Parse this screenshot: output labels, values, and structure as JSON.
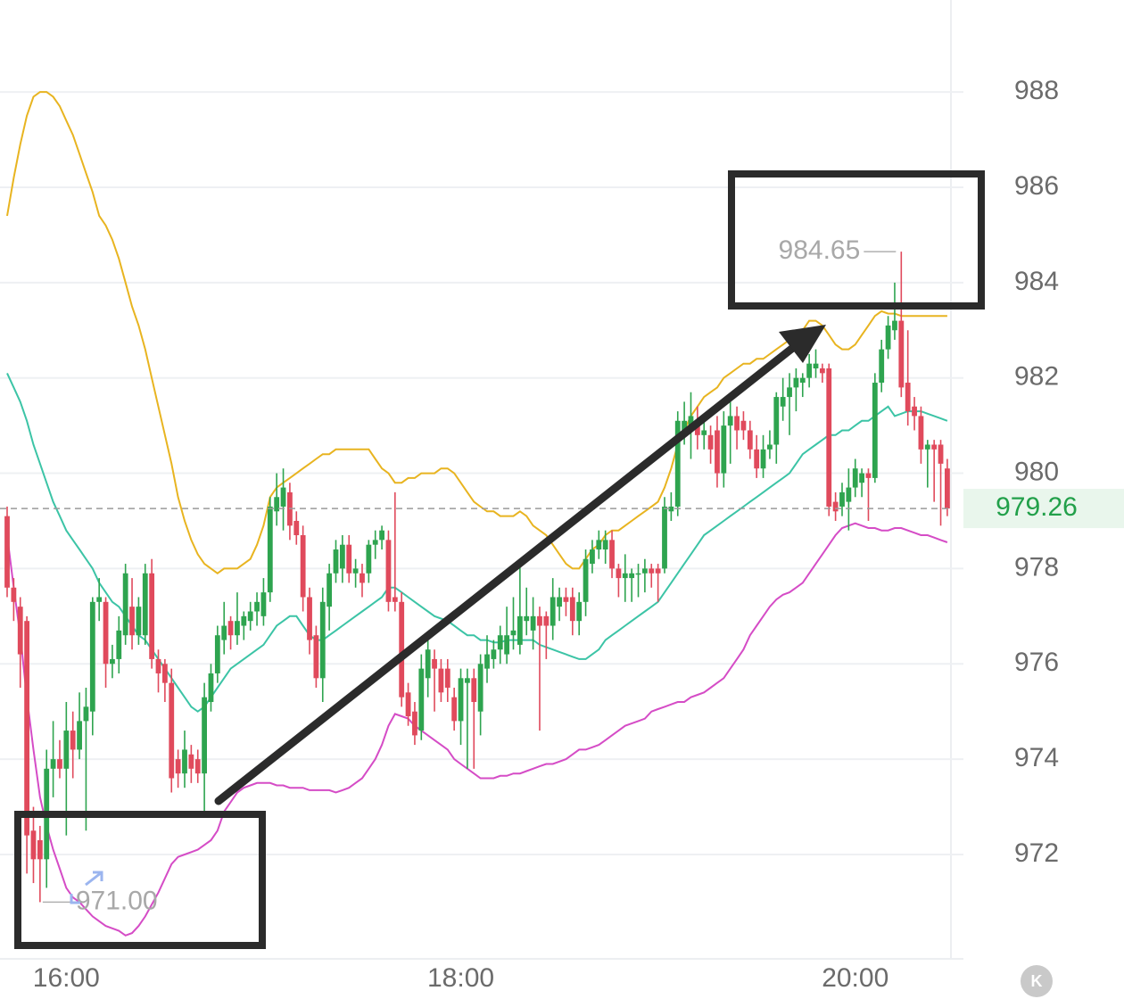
{
  "chart_data": {
    "type": "candlestick",
    "categories": [
      null,
      null,
      null,
      null,
      null,
      null,
      null,
      null,
      null,
      "16:00",
      null,
      null,
      null,
      null,
      null,
      null,
      null,
      null,
      null,
      null,
      null,
      null,
      null,
      null,
      null,
      null,
      null,
      null,
      null,
      null,
      null,
      null,
      null,
      null,
      null,
      null,
      null,
      null,
      null,
      null,
      null,
      null,
      null,
      null,
      null,
      null,
      null,
      null,
      null,
      null,
      null,
      null,
      null,
      null,
      null,
      null,
      null,
      null,
      null,
      null,
      null,
      null,
      null,
      null,
      null,
      null,
      null,
      null,
      null,
      "18:00",
      null,
      null,
      null,
      null,
      null,
      null,
      null,
      null,
      null,
      null,
      null,
      null,
      null,
      null,
      null,
      null,
      null,
      null,
      null,
      null,
      null,
      null,
      null,
      null,
      null,
      null,
      null,
      null,
      null,
      null,
      null,
      null,
      null,
      null,
      null,
      null,
      null,
      null,
      null,
      null,
      null,
      null,
      null,
      null,
      null,
      null,
      null,
      null,
      null,
      null,
      null,
      null,
      null,
      null,
      null,
      null,
      null,
      null,
      null,
      "20:00",
      null,
      null,
      null,
      null,
      null,
      null,
      null,
      null,
      null,
      null,
      null,
      null,
      null,
      null
    ],
    "open": [
      979.1,
      977.6,
      977.2,
      976.9,
      972.5,
      972.3,
      971.9,
      973.8,
      974.0,
      973.8,
      974.6,
      974.2,
      974.8,
      975.0,
      977.3,
      977.3,
      976.0,
      976.1,
      976.6,
      977.2,
      976.6,
      976.6,
      977.9,
      976.1,
      976.0,
      975.6,
      974.0,
      973.7,
      974.1,
      974.0,
      973.7,
      975.2,
      975.8,
      976.5,
      976.9,
      976.6,
      976.8,
      976.9,
      977.1,
      977.0,
      977.5,
      979.2,
      979.3,
      979.6,
      979.0,
      978.7,
      977.4,
      976.6,
      975.7,
      977.2,
      977.9,
      978.0,
      978.5,
      977.9,
      977.9,
      977.9,
      978.5,
      978.6,
      978.6,
      977.4,
      977.3,
      975.4,
      975.0,
      974.6,
      975.7,
      976.1,
      975.9,
      975.9,
      975.3,
      974.8,
      975.6,
      975.7,
      975.0,
      975.9,
      976.1,
      976.3,
      976.2,
      976.6,
      976.4,
      976.9,
      976.7,
      977.0,
      977.0,
      976.8,
      977.2,
      977.4,
      977.4,
      976.9,
      977.3,
      978.1,
      978.4,
      978.4,
      978.6,
      978.0,
      977.8,
      977.8,
      977.9,
      977.9,
      978.0,
      978.0,
      978.0,
      979.2,
      979.3,
      980.9,
      981.0,
      981.1,
      980.8,
      980.8,
      980.9,
      980.0,
      981.0,
      981.2,
      981.1,
      980.9,
      980.5,
      980.1,
      980.5,
      980.6,
      981.4,
      981.6,
      981.8,
      981.9,
      982.0,
      982.2,
      982.2,
      982.2,
      979.4,
      979.3,
      979.4,
      979.7,
      979.8,
      980.0,
      979.9,
      981.9,
      982.6,
      983.0,
      983.2,
      981.9,
      981.4,
      981.2,
      980.5,
      980.6,
      980.6,
      980.1
    ],
    "high": [
      979.3,
      977.8,
      977.4,
      977.0,
      973.0,
      972.6,
      974.2,
      974.8,
      974.4,
      975.2,
      975.0,
      975.4,
      975.5,
      977.4,
      977.8,
      977.4,
      976.4,
      977.0,
      978.1,
      977.8,
      977.4,
      978.1,
      978.2,
      976.3,
      976.1,
      975.9,
      974.2,
      974.6,
      974.3,
      974.2,
      975.6,
      976.0,
      976.8,
      977.3,
      977.0,
      977.5,
      977.1,
      977.3,
      977.5,
      977.8,
      979.5,
      980.0,
      980.1,
      979.8,
      979.2,
      978.9,
      977.6,
      976.8,
      977.6,
      978.1,
      978.6,
      978.7,
      978.7,
      978.2,
      978.1,
      978.6,
      978.8,
      978.9,
      978.8,
      979.6,
      977.5,
      975.6,
      975.2,
      976.2,
      976.6,
      976.3,
      976.1,
      976.1,
      975.5,
      975.9,
      975.9,
      975.9,
      976.2,
      976.6,
      976.5,
      976.8,
      977.2,
      977.4,
      978.2,
      977.6,
      977.4,
      977.2,
      977.1,
      977.8,
      977.6,
      977.6,
      977.6,
      977.5,
      978.4,
      978.6,
      978.8,
      978.8,
      978.8,
      978.1,
      978.3,
      978.0,
      978.1,
      978.2,
      978.1,
      978.1,
      979.5,
      979.6,
      981.3,
      981.5,
      981.7,
      981.4,
      981.1,
      981.0,
      981.2,
      981.3,
      981.5,
      981.4,
      981.3,
      981.1,
      980.8,
      980.8,
      980.9,
      981.7,
      982.0,
      982.1,
      982.2,
      982.1,
      982.5,
      982.6,
      982.3,
      982.3,
      979.6,
      979.8,
      980.1,
      980.3,
      980.1,
      980.1,
      982.1,
      982.8,
      983.3,
      984.0,
      984.65,
      983.0,
      981.6,
      981.4,
      980.7,
      980.7,
      980.7,
      980.3
    ],
    "low": [
      977.4,
      976.9,
      975.5,
      971.6,
      971.4,
      971.0,
      971.3,
      973.2,
      973.6,
      972.4,
      973.6,
      974.0,
      972.5,
      974.5,
      976.9,
      975.5,
      975.7,
      975.8,
      976.4,
      976.3,
      976.4,
      976.4,
      975.9,
      975.4,
      975.2,
      973.3,
      973.4,
      973.4,
      973.5,
      973.5,
      972.9,
      975.0,
      975.6,
      976.2,
      976.3,
      976.4,
      976.5,
      976.7,
      976.8,
      976.8,
      977.3,
      978.9,
      978.8,
      978.6,
      978.5,
      977.1,
      976.2,
      975.5,
      975.2,
      976.7,
      977.7,
      977.7,
      977.7,
      977.6,
      977.4,
      977.7,
      978.2,
      978.4,
      977.1,
      977.1,
      975.1,
      974.7,
      974.3,
      974.4,
      975.3,
      975.0,
      975.2,
      975.2,
      974.6,
      974.3,
      973.8,
      973.8,
      974.5,
      975.6,
      975.9,
      976.0,
      976.0,
      976.3,
      976.2,
      976.6,
      976.3,
      974.6,
      976.1,
      976.5,
      976.9,
      977.0,
      976.6,
      976.6,
      977.0,
      977.9,
      978.2,
      978.1,
      977.8,
      977.4,
      977.3,
      977.3,
      977.4,
      977.5,
      977.6,
      977.3,
      977.9,
      979.0,
      979.1,
      980.6,
      980.3,
      980.5,
      980.5,
      980.2,
      979.7,
      979.7,
      980.2,
      980.5,
      980.7,
      980.3,
      979.9,
      979.9,
      980.3,
      980.2,
      981.1,
      980.8,
      981.3,
      981.6,
      981.8,
      982.0,
      981.9,
      979.1,
      979.0,
      979.1,
      978.8,
      979.5,
      979.5,
      979.0,
      979.8,
      981.7,
      982.4,
      982.8,
      981.6,
      981.0,
      980.9,
      980.2,
      979.7,
      979.4,
      978.9,
      979.1
    ],
    "close": [
      977.6,
      977.3,
      976.2,
      972.4,
      971.9,
      971.9,
      973.8,
      974.0,
      973.8,
      974.6,
      974.2,
      974.8,
      975.1,
      977.3,
      977.4,
      976.0,
      976.1,
      976.7,
      977.9,
      976.6,
      977.2,
      977.9,
      976.1,
      975.8,
      975.6,
      973.6,
      973.7,
      974.2,
      973.8,
      973.7,
      975.3,
      975.8,
      976.6,
      976.8,
      976.6,
      976.9,
      977.0,
      977.1,
      977.3,
      977.5,
      979.3,
      979.5,
      979.7,
      978.9,
      978.7,
      977.4,
      976.5,
      975.7,
      977.3,
      977.9,
      978.4,
      978.5,
      977.9,
      978.0,
      977.7,
      978.5,
      978.6,
      978.8,
      977.3,
      977.3,
      975.3,
      974.9,
      974.5,
      975.9,
      976.3,
      975.9,
      975.4,
      975.5,
      974.8,
      975.7,
      975.7,
      975.2,
      976.0,
      976.2,
      976.3,
      976.6,
      976.6,
      976.7,
      977.0,
      977.0,
      977.0,
      976.8,
      976.8,
      977.4,
      977.4,
      977.3,
      976.9,
      977.3,
      978.2,
      978.4,
      978.6,
      978.6,
      978.0,
      977.8,
      977.9,
      977.9,
      977.9,
      978.0,
      977.9,
      977.9,
      979.3,
      979.3,
      981.1,
      981.1,
      981.2,
      980.8,
      980.9,
      980.5,
      980.0,
      981.0,
      981.2,
      980.9,
      980.9,
      980.5,
      980.1,
      980.5,
      980.6,
      981.6,
      981.6,
      981.8,
      982.0,
      982.0,
      982.3,
      982.3,
      982.1,
      979.3,
      979.2,
      979.6,
      979.7,
      980.1,
      980.0,
      979.9,
      981.9,
      982.6,
      983.1,
      983.2,
      981.8,
      981.3,
      981.2,
      980.5,
      980.6,
      980.5,
      980.2,
      979.26
    ],
    "up_color": "#2ea44f",
    "down_color": "#e04a5c",
    "overlays": [
      {
        "color": "#e8b420",
        "values": [
          985.4,
          986.2,
          986.9,
          987.5,
          987.9,
          988.0,
          988.0,
          987.9,
          987.7,
          987.4,
          987.1,
          986.7,
          986.3,
          985.9,
          985.4,
          985.2,
          984.9,
          984.5,
          984.0,
          983.5,
          983.1,
          982.6,
          982.0,
          981.4,
          980.8,
          980.2,
          979.5,
          979.0,
          978.6,
          978.3,
          978.1,
          978.0,
          977.9,
          978.0,
          978.0,
          978.0,
          978.1,
          978.2,
          978.5,
          978.9,
          979.5,
          979.7,
          979.8,
          979.9,
          980.0,
          980.1,
          980.2,
          980.3,
          980.4,
          980.4,
          980.5,
          980.5,
          980.5,
          980.5,
          980.5,
          980.5,
          980.3,
          980.1,
          980.0,
          979.8,
          979.8,
          979.9,
          979.9,
          980.0,
          980.0,
          980.0,
          980.1,
          980.1,
          980.0,
          979.8,
          979.6,
          979.4,
          979.3,
          979.2,
          979.2,
          979.1,
          979.1,
          979.1,
          979.2,
          979.1,
          978.9,
          978.8,
          978.7,
          978.5,
          978.3,
          978.1,
          978.0,
          978.0,
          978.2,
          978.4,
          978.5,
          978.7,
          978.8,
          978.8,
          978.9,
          979.0,
          979.1,
          979.2,
          979.3,
          979.4,
          979.7,
          980.1,
          980.6,
          980.9,
          981.2,
          981.4,
          981.6,
          981.7,
          981.8,
          982.0,
          982.1,
          982.2,
          982.3,
          982.3,
          982.4,
          982.4,
          982.5,
          982.6,
          982.7,
          982.8,
          982.9,
          983.0,
          983.2,
          983.2,
          983.1,
          982.9,
          982.7,
          982.6,
          982.6,
          982.7,
          982.9,
          983.1,
          983.3,
          983.4,
          983.35,
          983.35,
          983.3,
          983.3,
          983.3,
          983.3,
          983.3,
          983.3,
          983.3,
          983.3
        ]
      },
      {
        "color": "#3cc4a6",
        "values": [
          982.1,
          981.8,
          981.5,
          981.1,
          980.6,
          980.2,
          979.8,
          979.4,
          979.1,
          978.8,
          978.6,
          978.4,
          978.2,
          978.0,
          977.7,
          977.5,
          977.3,
          977.2,
          977.0,
          976.8,
          976.6,
          976.5,
          976.3,
          976.1,
          975.9,
          975.7,
          975.5,
          975.3,
          975.1,
          975.0,
          975.1,
          975.3,
          975.5,
          975.7,
          975.9,
          976.0,
          976.1,
          976.2,
          976.3,
          976.4,
          976.6,
          976.8,
          976.9,
          977.0,
          977.0,
          976.8,
          976.6,
          976.5,
          976.5,
          976.6,
          976.7,
          976.8,
          976.9,
          977.0,
          977.1,
          977.2,
          977.3,
          977.4,
          977.6,
          977.6,
          977.5,
          977.4,
          977.3,
          977.2,
          977.1,
          977.0,
          976.95,
          976.9,
          976.8,
          976.7,
          976.6,
          976.6,
          976.5,
          976.5,
          976.45,
          976.45,
          976.5,
          976.5,
          976.5,
          976.5,
          976.5,
          976.4,
          976.35,
          976.3,
          976.25,
          976.2,
          976.15,
          976.1,
          976.1,
          976.2,
          976.3,
          976.5,
          976.6,
          976.7,
          976.8,
          976.9,
          977.0,
          977.1,
          977.2,
          977.3,
          977.5,
          977.7,
          977.9,
          978.1,
          978.3,
          978.5,
          978.7,
          978.8,
          978.9,
          979.0,
          979.1,
          979.2,
          979.3,
          979.4,
          979.5,
          979.6,
          979.7,
          979.8,
          979.9,
          980.0,
          980.2,
          980.4,
          980.5,
          980.6,
          980.7,
          980.8,
          980.8,
          980.9,
          980.9,
          981.0,
          981.1,
          981.1,
          981.2,
          981.3,
          981.4,
          981.2,
          981.25,
          981.3,
          981.3,
          981.3,
          981.25,
          981.2,
          981.15,
          981.1
        ]
      },
      {
        "color": "#d54cc6",
        "values": [
          978.7,
          977.6,
          976.6,
          975.3,
          974.2,
          973.2,
          972.6,
          972.1,
          971.7,
          971.3,
          971.1,
          971.0,
          970.85,
          970.7,
          970.6,
          970.5,
          970.45,
          970.4,
          970.3,
          970.35,
          970.5,
          970.7,
          970.95,
          971.2,
          971.5,
          971.8,
          971.95,
          972.0,
          972.05,
          972.1,
          972.2,
          972.3,
          972.5,
          972.9,
          973.1,
          973.3,
          973.4,
          973.45,
          973.5,
          973.5,
          973.5,
          973.45,
          973.45,
          973.4,
          973.4,
          973.4,
          973.35,
          973.35,
          973.35,
          973.35,
          973.3,
          973.35,
          973.4,
          973.5,
          973.6,
          973.8,
          974.0,
          974.3,
          974.7,
          974.95,
          974.9,
          974.85,
          974.7,
          974.6,
          974.5,
          974.4,
          974.3,
          974.2,
          974.0,
          973.9,
          973.8,
          973.7,
          973.6,
          973.6,
          973.6,
          973.65,
          973.65,
          973.7,
          973.7,
          973.75,
          973.8,
          973.85,
          973.9,
          973.9,
          973.95,
          974.0,
          974.1,
          974.2,
          974.2,
          974.25,
          974.3,
          974.4,
          974.5,
          974.6,
          974.7,
          974.75,
          974.8,
          974.85,
          975.0,
          975.05,
          975.1,
          975.15,
          975.2,
          975.2,
          975.3,
          975.35,
          975.4,
          975.5,
          975.6,
          975.7,
          975.9,
          976.1,
          976.3,
          976.6,
          976.8,
          977.0,
          977.2,
          977.35,
          977.45,
          977.5,
          977.6,
          977.7,
          977.9,
          978.1,
          978.3,
          978.5,
          978.7,
          978.85,
          978.9,
          978.95,
          978.9,
          978.85,
          978.85,
          978.8,
          978.8,
          978.85,
          978.85,
          978.8,
          978.75,
          978.7,
          978.7,
          978.65,
          978.6,
          978.55
        ]
      }
    ],
    "ylim": [
      969.81,
      989.93
    ],
    "yticks": [
      972,
      974,
      976,
      978,
      980,
      982,
      984,
      986,
      988
    ],
    "grid": true,
    "last_price": 979.26,
    "extreme_labels": [
      {
        "value": 984.65,
        "label": "984.65"
      },
      {
        "value": 971,
        "label": "971.00"
      }
    ]
  },
  "toolbar_button": "K"
}
